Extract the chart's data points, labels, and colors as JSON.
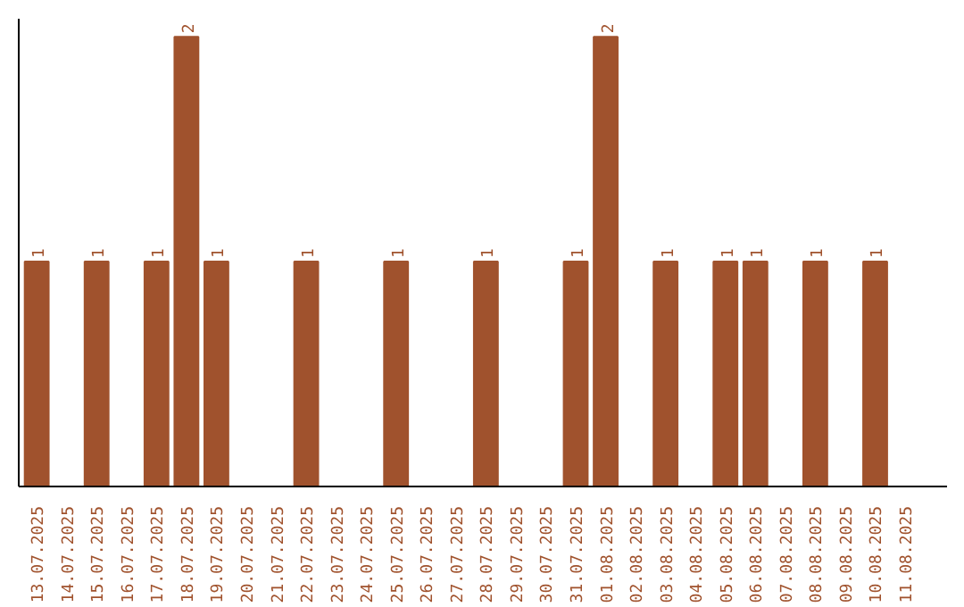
{
  "chart_data": {
    "type": "bar",
    "categories": [
      "13.07.2025",
      "14.07.2025",
      "15.07.2025",
      "16.07.2025",
      "17.07.2025",
      "18.07.2025",
      "19.07.2025",
      "20.07.2025",
      "21.07.2025",
      "22.07.2025",
      "23.07.2025",
      "24.07.2025",
      "25.07.2025",
      "26.07.2025",
      "27.07.2025",
      "28.07.2025",
      "29.07.2025",
      "30.07.2025",
      "31.07.2025",
      "01.08.2025",
      "02.08.2025",
      "03.08.2025",
      "04.08.2025",
      "05.08.2025",
      "06.08.2025",
      "07.08.2025",
      "08.08.2025",
      "09.08.2025",
      "10.08.2025",
      "11.08.2025"
    ],
    "values": [
      1,
      null,
      1,
      null,
      1,
      2,
      1,
      null,
      null,
      1,
      null,
      null,
      1,
      null,
      null,
      1,
      null,
      null,
      1,
      2,
      null,
      1,
      null,
      1,
      1,
      null,
      1,
      null,
      1,
      null
    ],
    "color": "#a0522d",
    "data_labels": true,
    "grid": false
  }
}
